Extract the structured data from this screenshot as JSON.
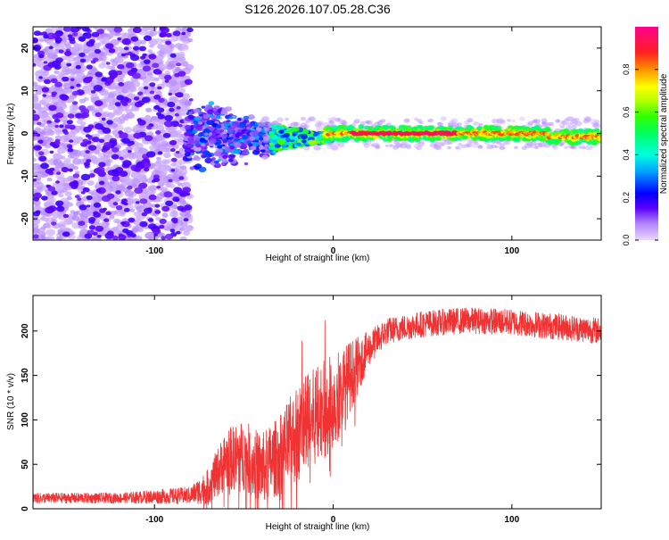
{
  "title": "S126.2026.107.05.28.C36",
  "colors": {
    "snr_line": "#f03232",
    "frame": "#000000",
    "point_main": "#6a1ee8",
    "point_light": "#c9a8f5"
  },
  "chart_data": [
    {
      "type": "heatmap",
      "xlabel": "Height of straight line (km)",
      "ylabel": "Frequency (Hz)",
      "xlim": [
        -168,
        150
      ],
      "ylim": [
        -25,
        25
      ],
      "xticks": [
        -100,
        0,
        100
      ],
      "yticks": [
        -20,
        -10,
        0,
        10,
        20
      ],
      "grid": false,
      "colorbar": {
        "label": "Normalized spectral amplitude",
        "range": [
          0.0,
          1.0
        ],
        "ticks": [
          0.0,
          0.2,
          0.4,
          0.6,
          0.8
        ],
        "colormap": [
          "#cc99ff",
          "#4a00ff",
          "#0000ff",
          "#00c8ff",
          "#00ff80",
          "#40ff00",
          "#ffff00",
          "#ff8000",
          "#ff0040",
          "#ff0080"
        ]
      },
      "regions": [
        {
          "x_range": [
            -168,
            -80
          ],
          "freq_spread": [
            -25,
            25
          ],
          "amplitude": 0.05,
          "description": "noise"
        },
        {
          "x_range": [
            -80,
            -30
          ],
          "freq_spread": [
            -7,
            7
          ],
          "amplitude": 0.2
        },
        {
          "x_range": [
            -30,
            0
          ],
          "freq_spread": [
            -3,
            3
          ],
          "amplitude": 0.55
        },
        {
          "x_range": [
            0,
            150
          ],
          "freq_center": [
            0,
            0
          ],
          "freq_spread": [
            -1.5,
            1.5
          ],
          "amplitude": 0.95
        }
      ]
    },
    {
      "type": "line",
      "xlabel": "Height of straight line (km)",
      "ylabel": "SNR (10 * v/v)",
      "xlim": [
        -168,
        150
      ],
      "ylim": [
        0,
        240
      ],
      "xticks": [
        -100,
        0,
        100
      ],
      "yticks": [
        0,
        50,
        100,
        150,
        200
      ],
      "grid": false,
      "series": [
        {
          "name": "SNR",
          "envelope": {
            "x": [
              -168,
              -120,
              -80,
              -70,
              -60,
              -50,
              -40,
              -30,
              -20,
              -10,
              0,
              10,
              20,
              30,
              50,
              75,
              100,
              125,
              150
            ],
            "y": [
              12,
              12,
              15,
              25,
              55,
              60,
              45,
              60,
              85,
              105,
              120,
              150,
              180,
              200,
              208,
              212,
              210,
              205,
              200
            ]
          },
          "noise_amplitude": [
            6,
            6,
            10,
            20,
            35,
            40,
            40,
            45,
            55,
            55,
            55,
            40,
            20,
            15,
            15,
            15,
            15,
            15,
            15
          ]
        }
      ]
    }
  ]
}
